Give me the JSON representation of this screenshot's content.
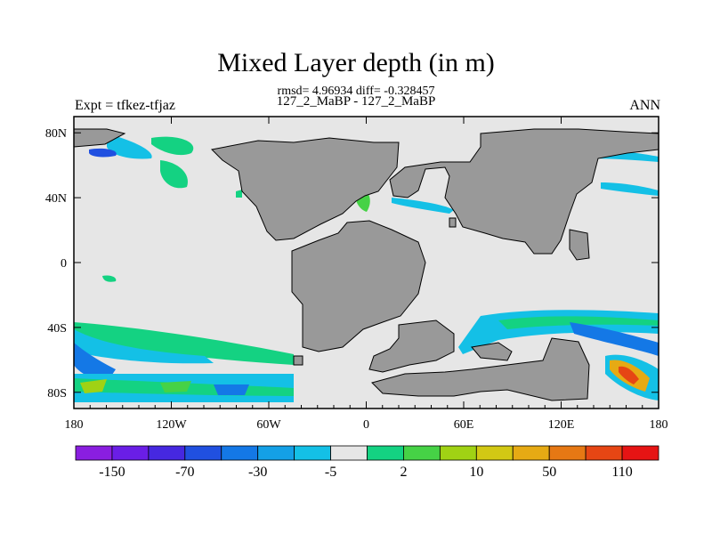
{
  "header": {
    "title": "Mixed Layer depth (in m)",
    "stats": "rmsd= 4.96934 diff= -0.328457",
    "subtitle": "127_2_MaBP - 127_2_MaBP",
    "left_label": "Expt = tfkez-tfjaz",
    "right_label": "ANN"
  },
  "chart_data": {
    "type": "heatmap",
    "title": "Mixed Layer depth (in m)",
    "xlim": [
      -180,
      180
    ],
    "ylim": [
      -90,
      90
    ],
    "x_ticks": [
      -180,
      -120,
      -60,
      0,
      60,
      120,
      180
    ],
    "x_tick_labels": [
      "180",
      "120W",
      "60W",
      "0",
      "60E",
      "120E",
      "180"
    ],
    "y_ticks": [
      80,
      40,
      0,
      -40,
      -80
    ],
    "y_tick_labels": [
      "80N",
      "40N",
      "0",
      "40S",
      "80S"
    ],
    "colorbar": {
      "labels": [
        "-150",
        "-70",
        "-30",
        "-5",
        "2",
        "10",
        "50",
        "110"
      ],
      "colors": [
        "#8a1ee0",
        "#6a1ee6",
        "#4628e0",
        "#2050e0",
        "#1478e6",
        "#14a0e6",
        "#14c0e6",
        "#e6e6e6",
        "#14d282",
        "#46d246",
        "#a0d214",
        "#d2c814",
        "#e6aa14",
        "#e67814",
        "#e64614",
        "#e61414"
      ]
    },
    "land_color": "#999999",
    "ocean_background": "#e6e6e6"
  }
}
